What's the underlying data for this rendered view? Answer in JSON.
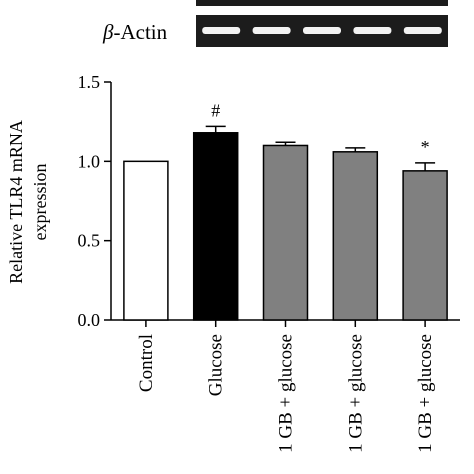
{
  "gel": {
    "label_symbol": "β",
    "label_text": "-Actin",
    "lanes": 5,
    "band_color": "#f2f2f2",
    "background_color": "#1c1c1c"
  },
  "chart_data": {
    "type": "bar",
    "ylabel_line1": "Relative TLR4 mRNA",
    "ylabel_line2": "expression",
    "ylim": [
      0,
      1.5
    ],
    "yticks": [
      "0.0",
      "0.5",
      "1.0",
      "1.5"
    ],
    "categories": [
      "Control",
      "Glucose",
      "1 GB + glucose",
      "1 GB + glucose",
      "1 GB + glucose"
    ],
    "values": [
      1.0,
      1.18,
      1.1,
      1.06,
      0.94
    ],
    "errors": [
      0,
      0.04,
      0.02,
      0.025,
      0.05
    ],
    "annotations": [
      "",
      "#",
      "",
      "",
      "*"
    ],
    "fills": [
      "#ffffff",
      "#000000",
      "#808080",
      "#808080",
      "#808080"
    ]
  }
}
